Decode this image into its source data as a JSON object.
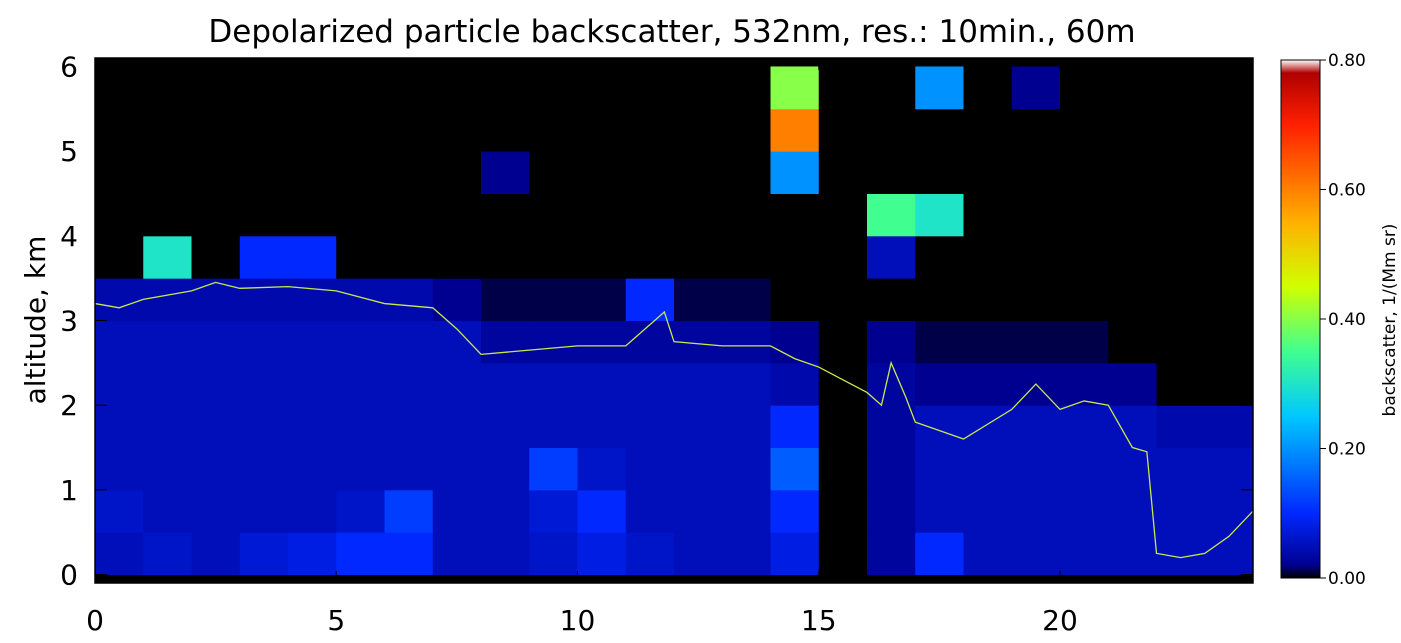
{
  "chart_data": {
    "type": "heatmap",
    "title": "Depolarized particle backscatter, 532nm, res.: 10min., 60m",
    "ylabel": "altitude, km",
    "colorbar_label": "backscatter, 1/(Mm sr)",
    "xlim": [
      0,
      24
    ],
    "ylim": [
      -0.1,
      6.1
    ],
    "xticks": [
      0,
      5,
      10,
      15,
      20
    ],
    "yticks": [
      0,
      1,
      2,
      3,
      4,
      5,
      6
    ],
    "x_edges": [
      0,
      1,
      2,
      3,
      4,
      5,
      6,
      7,
      8,
      9,
      10,
      11,
      12,
      13,
      14,
      15,
      16,
      17,
      18,
      19,
      20,
      21,
      22,
      23,
      24
    ],
    "y_edges": [
      0,
      0.5,
      1,
      1.5,
      2,
      2.5,
      3,
      3.5,
      4,
      4.5,
      5,
      5.5,
      6
    ],
    "z": [
      [
        0.05,
        0.06,
        0.05,
        0.07,
        0.08,
        0.1,
        0.1,
        0.05,
        0.05,
        0.06,
        0.08,
        0.06,
        0.05,
        0.05,
        0.08,
        0,
        0.03,
        0.1,
        0.05,
        0.05,
        0.05,
        0.05,
        0.05,
        0.05
      ],
      [
        0.06,
        0.05,
        0.05,
        0.05,
        0.05,
        0.06,
        0.12,
        0.05,
        0.05,
        0.07,
        0.1,
        0.05,
        0.05,
        0.05,
        0.1,
        0,
        0.03,
        0.05,
        0.05,
        0.05,
        0.05,
        0.05,
        0.05,
        0.05
      ],
      [
        0.05,
        0.05,
        0.05,
        0.05,
        0.05,
        0.05,
        0.05,
        0.05,
        0.05,
        0.12,
        0.06,
        0.05,
        0.05,
        0.05,
        0.15,
        0,
        0.03,
        0.05,
        0.05,
        0.05,
        0.05,
        0.05,
        0.05,
        0.05
      ],
      [
        0.05,
        0.05,
        0.05,
        0.05,
        0.05,
        0.05,
        0.05,
        0.05,
        0.05,
        0.05,
        0.05,
        0.05,
        0.05,
        0.05,
        0.1,
        0,
        0.03,
        0.05,
        0.05,
        0.05,
        0.05,
        0.05,
        0.04,
        0.04
      ],
      [
        0.05,
        0.05,
        0.05,
        0.05,
        0.05,
        0.05,
        0.05,
        0.05,
        0.05,
        0.05,
        0.05,
        0.05,
        0.05,
        0.05,
        0.04,
        0,
        0.03,
        0.02,
        0.02,
        0.02,
        0.02,
        0.02,
        0,
        0
      ],
      [
        0.05,
        0.05,
        0.05,
        0.05,
        0.05,
        0.05,
        0.05,
        0.05,
        0.03,
        0.03,
        0.03,
        0.03,
        0.03,
        0.03,
        0.02,
        0,
        0.02,
        0.01,
        0.01,
        0.01,
        0.01,
        0,
        0,
        0
      ],
      [
        0.04,
        0.04,
        0.04,
        0.04,
        0.04,
        0.04,
        0.04,
        0.02,
        0.01,
        0.01,
        0.01,
        0.1,
        0.01,
        0.01,
        0,
        0,
        0,
        0,
        0,
        0,
        0,
        0,
        0,
        0
      ],
      [
        0,
        0.3,
        0,
        0.1,
        0.1,
        0,
        0,
        0,
        0,
        0,
        0,
        0,
        0,
        0,
        0,
        0,
        0.05,
        0,
        0,
        0,
        0,
        0,
        0,
        0
      ],
      [
        0,
        0,
        0,
        0,
        0,
        0,
        0,
        0,
        0,
        0,
        0,
        0,
        0,
        0,
        0,
        0,
        0.35,
        0.3,
        0,
        0,
        0,
        0,
        0,
        0
      ],
      [
        0,
        0,
        0,
        0,
        0,
        0,
        0,
        0,
        0.02,
        0,
        0,
        0,
        0,
        0,
        0.2,
        0,
        0,
        0,
        0,
        0,
        0,
        0,
        0,
        0
      ],
      [
        0,
        0,
        0,
        0,
        0,
        0,
        0,
        0,
        0,
        0,
        0,
        0,
        0,
        0,
        0.6,
        0,
        0,
        0,
        0,
        0,
        0,
        0,
        0,
        0
      ],
      [
        0,
        0,
        0,
        0,
        0,
        0,
        0,
        0,
        0,
        0,
        0,
        0,
        0,
        0,
        0.4,
        0,
        0,
        0.2,
        0,
        0.02,
        0,
        0,
        0,
        0
      ]
    ],
    "clim": [
      0,
      0.8
    ],
    "colorscale": [
      [
        0,
        "#000000"
      ],
      [
        0.02,
        "#000090"
      ],
      [
        0.1,
        "#0028ff"
      ],
      [
        0.25,
        "#00c8ff"
      ],
      [
        0.35,
        "#40ff90"
      ],
      [
        0.45,
        "#d0ff00"
      ],
      [
        0.55,
        "#ffb000"
      ],
      [
        0.7,
        "#ff2000"
      ],
      [
        0.78,
        "#b00000"
      ],
      [
        0.8,
        "#ffffff"
      ]
    ],
    "colorbar_ticks": [
      {
        "value": 0,
        "label": "0.00"
      },
      {
        "value": 0.2,
        "label": "0.20"
      },
      {
        "value": 0.4,
        "label": "0.40"
      },
      {
        "value": 0.6,
        "label": "0.60"
      },
      {
        "value": 0.8,
        "label": "0.80"
      }
    ],
    "line": {
      "color": "#c8e850",
      "x": [
        0,
        0.5,
        1,
        2,
        2.5,
        3,
        4,
        5,
        6,
        7,
        7.5,
        8,
        9,
        10,
        11,
        11.8,
        12,
        13,
        14,
        14.5,
        15,
        16,
        16.3,
        16.5,
        16.8,
        17,
        18,
        19,
        19.5,
        20,
        20.5,
        21,
        21.5,
        21.8,
        22,
        22.5,
        23,
        23.5,
        24
      ],
      "y": [
        3.2,
        3.15,
        3.25,
        3.35,
        3.45,
        3.38,
        3.4,
        3.35,
        3.2,
        3.15,
        2.9,
        2.6,
        2.65,
        2.7,
        2.7,
        3.1,
        2.75,
        2.7,
        2.7,
        2.55,
        2.45,
        2.15,
        2.0,
        2.5,
        2.1,
        1.8,
        1.6,
        1.95,
        2.25,
        1.95,
        2.05,
        2.0,
        1.5,
        1.45,
        0.25,
        0.2,
        0.25,
        0.45,
        0.75
      ]
    }
  }
}
